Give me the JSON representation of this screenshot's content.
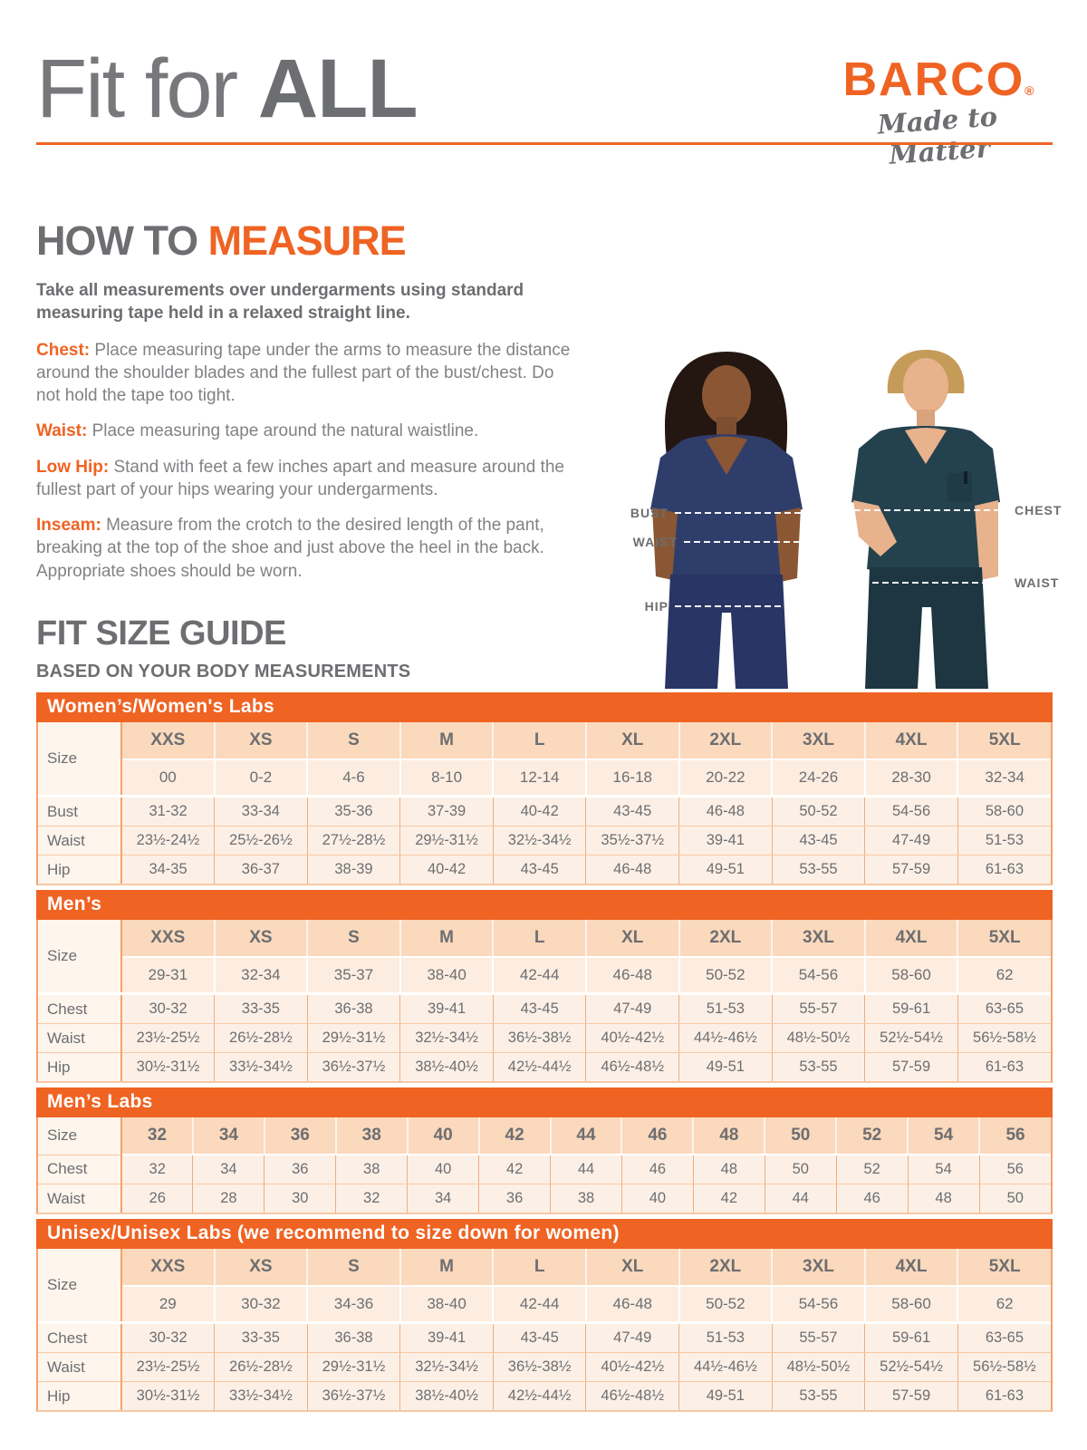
{
  "header": {
    "title_light": "Fit for ",
    "title_bold": "ALL"
  },
  "brand": {
    "logo": "BARCO",
    "registered": "®",
    "tagline": "Made to Matter"
  },
  "colors": {
    "orange": "#ef6323",
    "gray_dark": "#6d6e71",
    "gray": "#808285",
    "peach_header": "#fad9bd",
    "peach_light": "#fcf0e6"
  },
  "how_to_measure": {
    "heading_gray": "HOW TO ",
    "heading_orange": "MEASURE",
    "intro": "Take all measurements over undergarments using standard measuring tape held in a relaxed straight line.",
    "items": [
      {
        "term": "Chest:",
        "text": " Place measuring tape under the arms to measure the distance around the shoulder blades and the fullest part of the bust/chest. Do not hold the tape too tight."
      },
      {
        "term": "Waist:",
        "text": " Place measuring tape around the natural waistline."
      },
      {
        "term": "Low Hip:",
        "text": " Stand with feet a few inches apart and measure around the fullest part of your hips wearing your undergarments."
      },
      {
        "term": "Inseam:",
        "text": " Measure from the crotch to the desired length of the pant, breaking at the top of the shoe and just above the heel in the back. Appropriate shoes should be worn."
      }
    ]
  },
  "figure": {
    "left_labels": [
      "BUST",
      "WAIST",
      "HIP"
    ],
    "right_labels": [
      "CHEST",
      "WAIST"
    ]
  },
  "size_guide": {
    "heading": "FIT SIZE GUIDE",
    "subheading": "BASED ON YOUR BODY MEASUREMENTS",
    "size_row_label": "Size",
    "tables": [
      {
        "id": "womens",
        "title": "Women’s/Women's Labs",
        "sizes": [
          "XXS",
          "XS",
          "S",
          "M",
          "L",
          "XL",
          "2XL",
          "3XL",
          "4XL",
          "5XL"
        ],
        "alt_sizes": [
          "00",
          "0-2",
          "4-6",
          "8-10",
          "12-14",
          "16-18",
          "20-22",
          "24-26",
          "28-30",
          "32-34"
        ],
        "rows": [
          {
            "label": "Bust",
            "values": [
              "31-32",
              "33-34",
              "35-36",
              "37-39",
              "40-42",
              "43-45",
              "46-48",
              "50-52",
              "54-56",
              "58-60"
            ]
          },
          {
            "label": "Waist",
            "values": [
              "23½-24½",
              "25½-26½",
              "27½-28½",
              "29½-31½",
              "32½-34½",
              "35½-37½",
              "39-41",
              "43-45",
              "47-49",
              "51-53"
            ]
          },
          {
            "label": "Hip",
            "values": [
              "34-35",
              "36-37",
              "38-39",
              "40-42",
              "43-45",
              "46-48",
              "49-51",
              "53-55",
              "57-59",
              "61-63"
            ]
          }
        ]
      },
      {
        "id": "mens",
        "title": "Men’s",
        "sizes": [
          "XXS",
          "XS",
          "S",
          "M",
          "L",
          "XL",
          "2XL",
          "3XL",
          "4XL",
          "5XL"
        ],
        "alt_sizes": [
          "29-31",
          "32-34",
          "35-37",
          "38-40",
          "42-44",
          "46-48",
          "50-52",
          "54-56",
          "58-60",
          "62"
        ],
        "rows": [
          {
            "label": "Chest",
            "values": [
              "30-32",
              "33-35",
              "36-38",
              "39-41",
              "43-45",
              "47-49",
              "51-53",
              "55-57",
              "59-61",
              "63-65"
            ]
          },
          {
            "label": "Waist",
            "values": [
              "23½-25½",
              "26½-28½",
              "29½-31½",
              "32½-34½",
              "36½-38½",
              "40½-42½",
              "44½-46½",
              "48½-50½",
              "52½-54½",
              "56½-58½"
            ]
          },
          {
            "label": "Hip",
            "values": [
              "30½-31½",
              "33½-34½",
              "36½-37½",
              "38½-40½",
              "42½-44½",
              "46½-48½",
              "49-51",
              "53-55",
              "57-59",
              "61-63"
            ]
          }
        ]
      },
      {
        "id": "mens-labs",
        "title": "Men’s Labs",
        "sizes": [
          "32",
          "34",
          "36",
          "38",
          "40",
          "42",
          "44",
          "46",
          "48",
          "50",
          "52",
          "54",
          "56"
        ],
        "alt_sizes": null,
        "rows": [
          {
            "label": "Chest",
            "values": [
              "32",
              "34",
              "36",
              "38",
              "40",
              "42",
              "44",
              "46",
              "48",
              "50",
              "52",
              "54",
              "56"
            ]
          },
          {
            "label": "Waist",
            "values": [
              "26",
              "28",
              "30",
              "32",
              "34",
              "36",
              "38",
              "40",
              "42",
              "44",
              "46",
              "48",
              "50"
            ]
          }
        ]
      },
      {
        "id": "unisex",
        "title": "Unisex/Unisex Labs (we recommend to size down for women)",
        "sizes": [
          "XXS",
          "XS",
          "S",
          "M",
          "L",
          "XL",
          "2XL",
          "3XL",
          "4XL",
          "5XL"
        ],
        "alt_sizes": [
          "29",
          "30-32",
          "34-36",
          "38-40",
          "42-44",
          "46-48",
          "50-52",
          "54-56",
          "58-60",
          "62"
        ],
        "rows": [
          {
            "label": "Chest",
            "values": [
              "30-32",
              "33-35",
              "36-38",
              "39-41",
              "43-45",
              "47-49",
              "51-53",
              "55-57",
              "59-61",
              "63-65"
            ]
          },
          {
            "label": "Waist",
            "values": [
              "23½-25½",
              "26½-28½",
              "29½-31½",
              "32½-34½",
              "36½-38½",
              "40½-42½",
              "44½-46½",
              "48½-50½",
              "52½-54½",
              "56½-58½"
            ]
          },
          {
            "label": "Hip",
            "values": [
              "30½-31½",
              "33½-34½",
              "36½-37½",
              "38½-40½",
              "42½-44½",
              "46½-48½",
              "49-51",
              "53-55",
              "57-59",
              "61-63"
            ]
          }
        ]
      }
    ]
  }
}
